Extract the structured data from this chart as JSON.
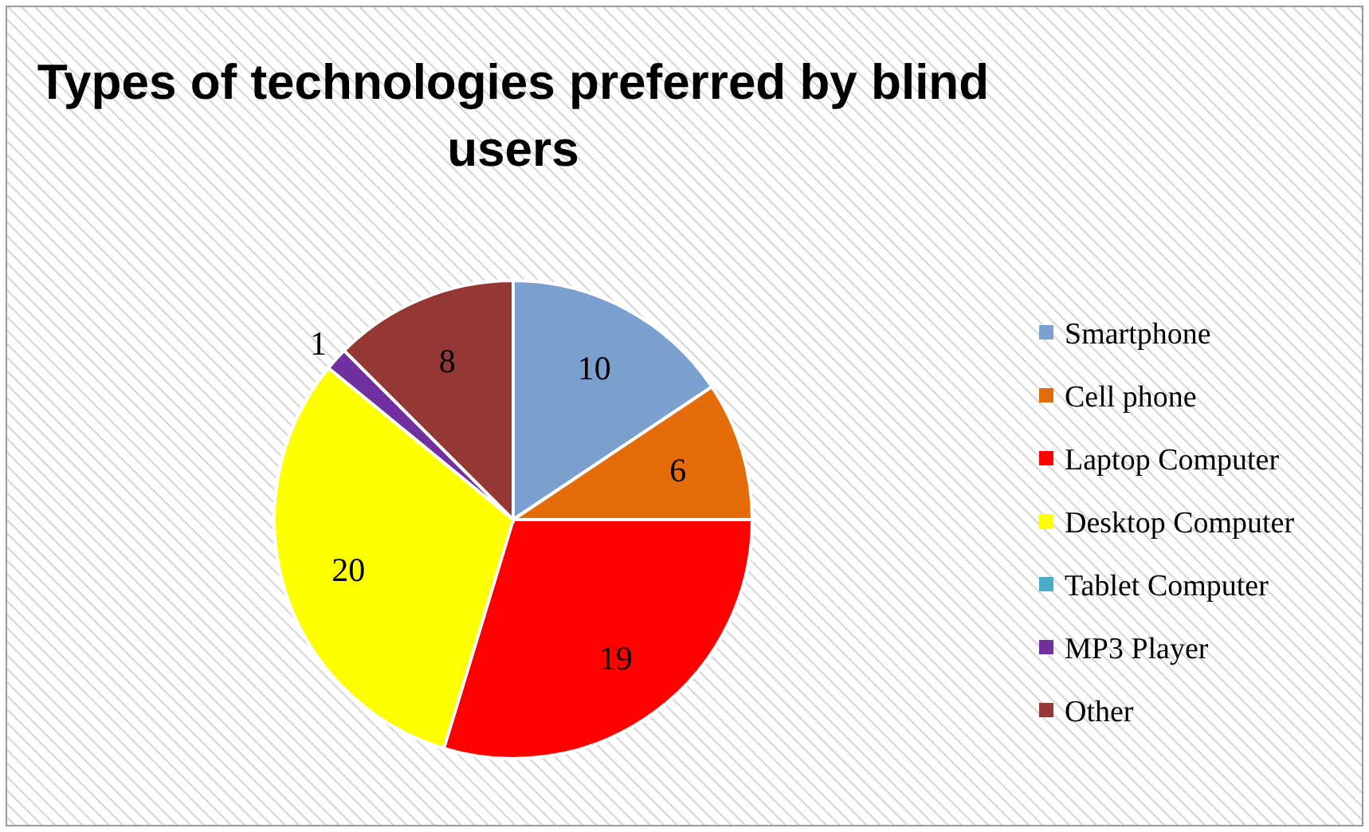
{
  "chart_data": {
    "type": "pie",
    "title": "Types of technologies preferred by blind users",
    "categories": [
      "Smartphone",
      "Cell phone",
      "Laptop Computer",
      "Desktop Computer",
      "Tablet Computer",
      "MP3 Player",
      "Other"
    ],
    "values": [
      10,
      6,
      19,
      20,
      0,
      1,
      8
    ],
    "value_labels": [
      "10",
      "6",
      "19",
      "20",
      null,
      "1",
      "8"
    ],
    "colors": [
      "#7b9fcf",
      "#e46c0a",
      "#ff0000",
      "#ffff00",
      "#4bacc6",
      "#7030a0",
      "#953735"
    ],
    "legend": "right"
  }
}
